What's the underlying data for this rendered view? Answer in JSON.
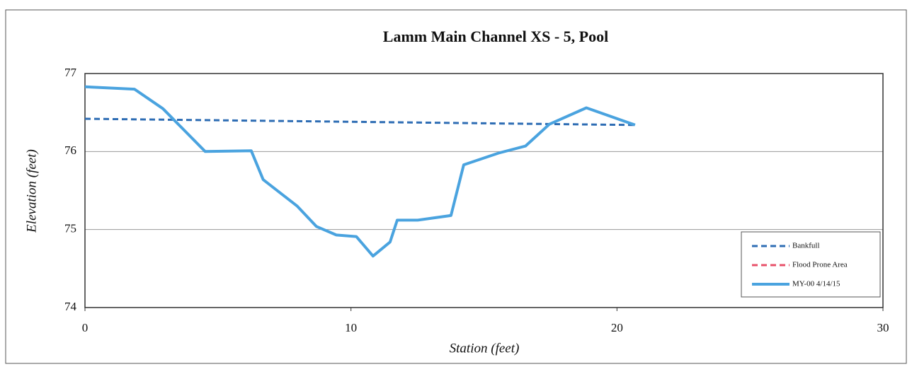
{
  "chart_data": {
    "type": "line",
    "title": "Lamm Main Channel XS - 5, Pool",
    "x_label": "Station (feet)",
    "y_label": "Elevation (feet)",
    "xlim": [
      0,
      30
    ],
    "xticks": [
      0,
      10,
      20,
      30
    ],
    "ylim": [
      74,
      77
    ],
    "yticks": [
      74,
      75,
      76,
      77
    ],
    "grid": true,
    "legend": "lower right",
    "series": [
      {
        "name": "Bankfull",
        "color": "#2e6db4",
        "dash": true,
        "x": [
          0,
          20.68
        ],
        "values": [
          76.42,
          76.34
        ]
      },
      {
        "name": "Flood Prone Area",
        "color": "#e8506a",
        "dash": true,
        "x": [],
        "values": []
      },
      {
        "name": "MY-00 4/14/15",
        "color": "#4aa3df",
        "dash": false,
        "x": [
          0,
          1.86,
          2.93,
          4.52,
          6.25,
          6.7,
          7.98,
          8.7,
          9.45,
          10.2,
          10.83,
          11.47,
          11.74,
          12.51,
          13.76,
          14.24,
          15.55,
          16.56,
          17.46,
          18.85,
          20.68
        ],
        "values": [
          76.83,
          76.8,
          76.55,
          76.0,
          76.01,
          75.64,
          75.3,
          75.04,
          74.93,
          74.91,
          74.66,
          74.84,
          75.12,
          75.12,
          75.18,
          75.83,
          75.98,
          76.07,
          76.35,
          76.56,
          76.34
        ]
      }
    ]
  }
}
